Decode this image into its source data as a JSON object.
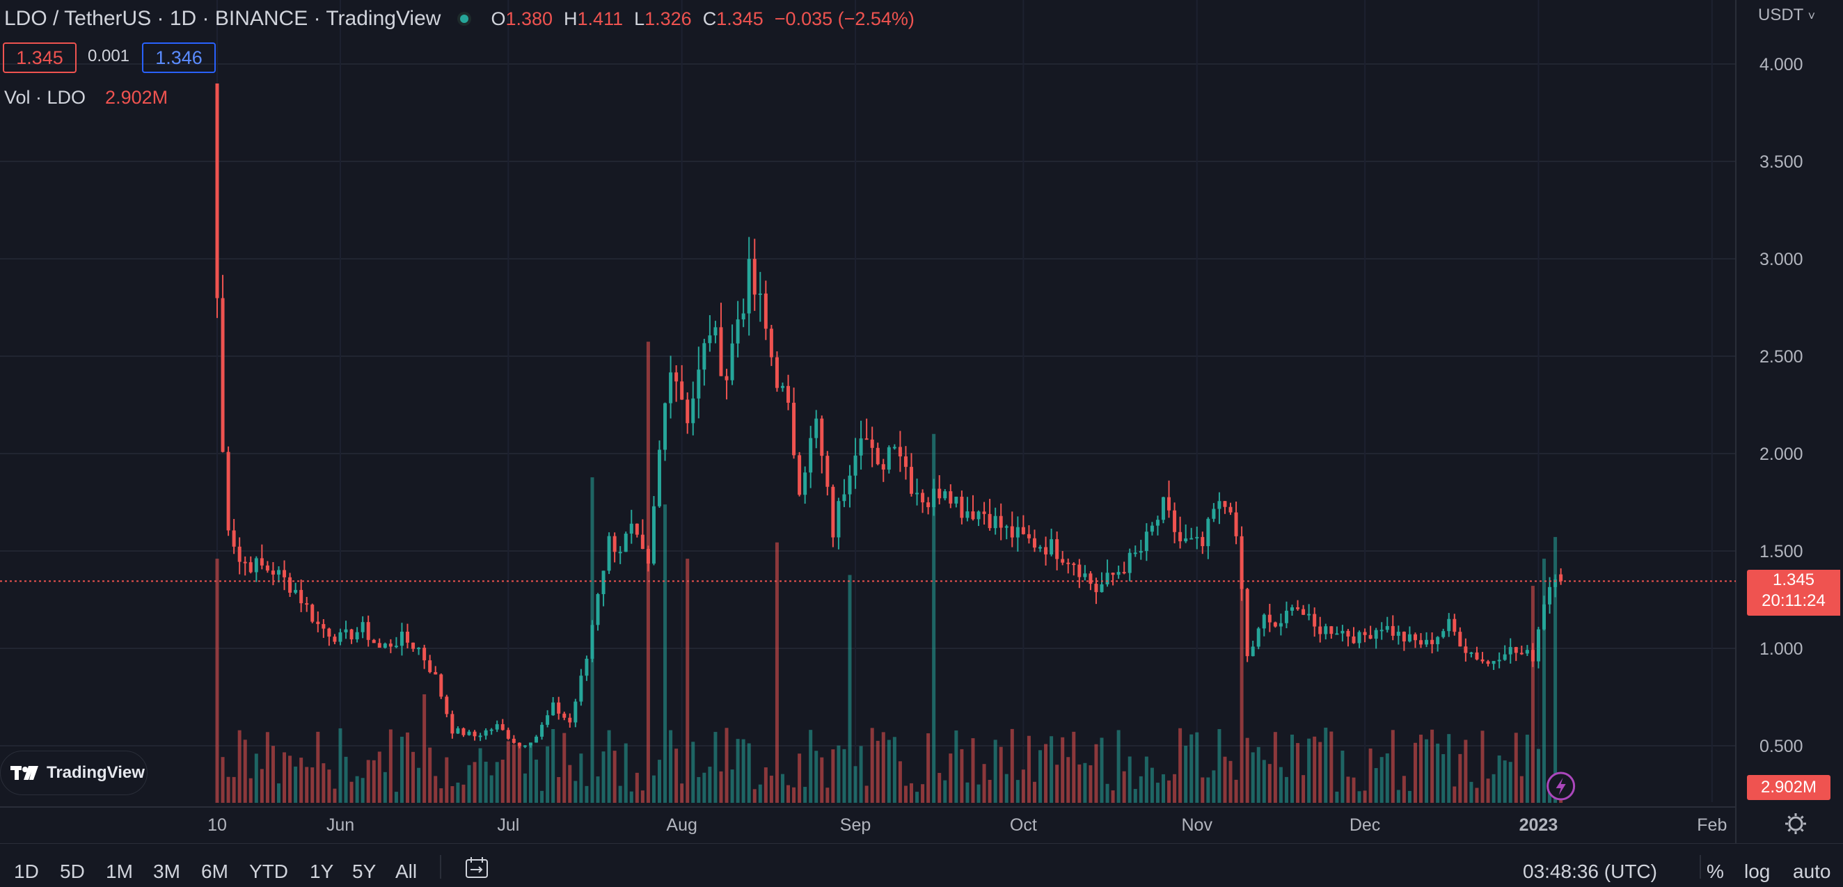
{
  "header": {
    "symbol_title": "LDO / TetherUS · 1D · BINANCE · TradingView",
    "ohlc": [
      {
        "key": "O",
        "value": "1.380"
      },
      {
        "key": "H",
        "value": "1.411"
      },
      {
        "key": "L",
        "value": "1.326"
      },
      {
        "key": "C",
        "value": "1.345"
      }
    ],
    "change": "−0.035 (−2.54%)",
    "bid": "1.345",
    "spread": "0.001",
    "ask": "1.346"
  },
  "volume_legend": {
    "label": "Vol · LDO",
    "value": "2.902M"
  },
  "price_axis": {
    "currency": "USDT",
    "ticks": [
      "4.000",
      "3.500",
      "3.000",
      "2.500",
      "2.000",
      "1.500",
      "1.000",
      "0.500"
    ],
    "last_price": "1.345",
    "countdown": "20:11:24",
    "volume_label": "2.902M"
  },
  "time_axis": {
    "labels": [
      "10",
      "Jun",
      "Jul",
      "Aug",
      "Sep",
      "Oct",
      "Nov",
      "Dec",
      "2023",
      "Feb"
    ]
  },
  "bottom_bar": {
    "timeframes": [
      "1D",
      "5D",
      "1M",
      "3M",
      "6M",
      "YTD",
      "1Y",
      "5Y",
      "All"
    ],
    "clock": "03:48:36 (UTC)",
    "percent_label": "%",
    "log_label": "log",
    "auto_label": "auto"
  },
  "branding": {
    "logo_text": "TradingView"
  },
  "colors": {
    "up": "#26a69a",
    "down": "#ef5350",
    "background": "#151822"
  },
  "chart_data": {
    "type": "candlestick",
    "timeframe": "1D",
    "ylim": [
      0.2,
      4.2
    ],
    "x_range": [
      "2022-05-10",
      "2023-02-05"
    ],
    "last_price": 1.345,
    "anchors": [
      [
        "2022-05-10",
        2.8
      ],
      [
        "2022-05-11",
        2.0
      ],
      [
        "2022-05-12",
        1.65
      ],
      [
        "2022-05-14",
        1.45
      ],
      [
        "2022-05-20",
        1.4
      ],
      [
        "2022-05-24",
        1.3
      ],
      [
        "2022-05-28",
        1.12
      ],
      [
        "2022-06-01",
        1.05
      ],
      [
        "2022-06-05",
        1.1
      ],
      [
        "2022-06-08",
        1.0
      ],
      [
        "2022-06-12",
        1.05
      ],
      [
        "2022-06-15",
        1.0
      ],
      [
        "2022-06-18",
        0.85
      ],
      [
        "2022-06-21",
        0.58
      ],
      [
        "2022-06-25",
        0.55
      ],
      [
        "2022-06-29",
        0.6
      ],
      [
        "2022-07-03",
        0.5
      ],
      [
        "2022-07-06",
        0.55
      ],
      [
        "2022-07-09",
        0.7
      ],
      [
        "2022-07-12",
        0.62
      ],
      [
        "2022-07-15",
        0.95
      ],
      [
        "2022-07-17",
        1.3
      ],
      [
        "2022-07-19",
        1.55
      ],
      [
        "2022-07-21",
        1.52
      ],
      [
        "2022-07-23",
        1.6
      ],
      [
        "2022-07-26",
        1.4
      ],
      [
        "2022-07-28",
        2.0
      ],
      [
        "2022-07-30",
        2.5
      ],
      [
        "2022-08-02",
        2.2
      ],
      [
        "2022-08-04",
        2.4
      ],
      [
        "2022-08-06",
        2.65
      ],
      [
        "2022-08-09",
        2.4
      ],
      [
        "2022-08-11",
        2.7
      ],
      [
        "2022-08-13",
        2.9
      ],
      [
        "2022-08-15",
        2.75
      ],
      [
        "2022-08-17",
        2.5
      ],
      [
        "2022-08-20",
        2.2
      ],
      [
        "2022-08-22",
        1.85
      ],
      [
        "2022-08-25",
        2.15
      ],
      [
        "2022-08-28",
        1.6
      ],
      [
        "2022-08-31",
        1.95
      ],
      [
        "2022-09-02",
        2.15
      ],
      [
        "2022-09-05",
        1.9
      ],
      [
        "2022-09-08",
        2.1
      ],
      [
        "2022-09-11",
        1.85
      ],
      [
        "2022-09-14",
        1.75
      ],
      [
        "2022-09-17",
        1.85
      ],
      [
        "2022-09-20",
        1.72
      ],
      [
        "2022-09-24",
        1.7
      ],
      [
        "2022-09-28",
        1.6
      ],
      [
        "2022-10-02",
        1.55
      ],
      [
        "2022-10-06",
        1.52
      ],
      [
        "2022-10-10",
        1.45
      ],
      [
        "2022-10-14",
        1.3
      ],
      [
        "2022-10-18",
        1.4
      ],
      [
        "2022-10-22",
        1.5
      ],
      [
        "2022-10-26",
        1.72
      ],
      [
        "2022-10-29",
        1.55
      ],
      [
        "2022-11-02",
        1.52
      ],
      [
        "2022-11-04",
        1.7
      ],
      [
        "2022-11-07",
        1.75
      ],
      [
        "2022-11-09",
        1.3
      ],
      [
        "2022-11-10",
        0.95
      ],
      [
        "2022-11-13",
        1.15
      ],
      [
        "2022-11-16",
        1.1
      ],
      [
        "2022-11-18",
        1.25
      ],
      [
        "2022-11-22",
        1.1
      ],
      [
        "2022-11-26",
        1.1
      ],
      [
        "2022-11-30",
        1.05
      ],
      [
        "2022-12-04",
        1.12
      ],
      [
        "2022-12-08",
        1.05
      ],
      [
        "2022-12-12",
        1.02
      ],
      [
        "2022-12-16",
        1.12
      ],
      [
        "2022-12-19",
        1.0
      ],
      [
        "2022-12-23",
        0.92
      ],
      [
        "2022-12-26",
        1.0
      ],
      [
        "2022-12-29",
        0.97
      ],
      [
        "2022-12-31",
        0.96
      ],
      [
        "2023-01-02",
        1.25
      ],
      [
        "2023-01-04",
        1.4
      ],
      [
        "2023-01-05",
        1.345
      ]
    ],
    "volume_spikes": [
      [
        "2022-05-10",
        0.45
      ],
      [
        "2022-06-16",
        0.2
      ],
      [
        "2022-07-16",
        0.6
      ],
      [
        "2022-07-26",
        0.85
      ],
      [
        "2022-07-29",
        0.55
      ],
      [
        "2022-08-02",
        0.45
      ],
      [
        "2022-08-18",
        0.48
      ],
      [
        "2022-08-31",
        0.42
      ],
      [
        "2022-09-15",
        0.68
      ],
      [
        "2022-11-09",
        0.48
      ],
      [
        "2022-12-31",
        0.4
      ],
      [
        "2023-01-02",
        0.45
      ],
      [
        "2023-01-04",
        0.49
      ]
    ]
  }
}
